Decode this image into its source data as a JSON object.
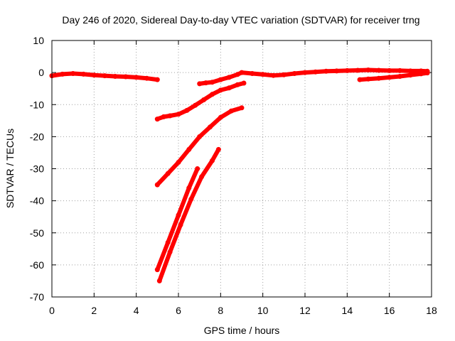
{
  "chart_data": {
    "type": "scatter",
    "title": "Day 246 of 2020, Sidereal Day-to-day VTEC variation (SDTVAR) for receiver trng",
    "xlabel": "GPS time / hours",
    "ylabel": "SDTVAR / TECUs",
    "xlim": [
      0,
      18
    ],
    "ylim": [
      -70,
      10
    ],
    "xticks": [
      0,
      2,
      4,
      6,
      8,
      10,
      12,
      14,
      16,
      18
    ],
    "yticks": [
      -70,
      -60,
      -50,
      -40,
      -30,
      -20,
      -10,
      0,
      10
    ],
    "grid": true,
    "legend": "none",
    "color": "#ff0000",
    "series": [
      {
        "x": [
          0,
          0.5,
          1.0,
          1.5,
          2.0,
          2.5,
          3.0,
          3.5,
          4.0,
          4.5,
          5.0
        ],
        "y": [
          -1.0,
          -0.5,
          -0.3,
          -0.5,
          -0.8,
          -1.0,
          -1.2,
          -1.3,
          -1.5,
          -1.8,
          -2.2
        ]
      },
      {
        "x": [
          7.0,
          7.3,
          7.6,
          8.0,
          8.4,
          8.8,
          9.0,
          9.5,
          10.0,
          10.5,
          11.0,
          11.5,
          12.0,
          12.5,
          13.0,
          13.5,
          14.0,
          14.5,
          15.0,
          15.5,
          16.0,
          16.5,
          17.0,
          17.5,
          17.8
        ],
        "y": [
          -3.5,
          -3.2,
          -3.0,
          -2.2,
          -1.5,
          -0.6,
          0.0,
          -0.3,
          -0.6,
          -0.9,
          -0.7,
          -0.3,
          0.0,
          0.2,
          0.4,
          0.5,
          0.6,
          0.7,
          0.8,
          0.7,
          0.6,
          0.6,
          0.5,
          0.5,
          0.4
        ]
      },
      {
        "x": [
          14.6,
          15.0,
          15.5,
          16.0,
          16.5,
          17.0,
          17.5,
          17.8
        ],
        "y": [
          -2.2,
          -2.0,
          -1.8,
          -1.5,
          -1.2,
          -0.8,
          -0.4,
          -0.1
        ]
      },
      {
        "x": [
          5.0,
          5.3,
          5.6,
          6.0,
          6.4,
          6.8,
          7.2,
          7.6,
          8.0,
          8.4,
          8.8,
          9.1
        ],
        "y": [
          -14.5,
          -13.8,
          -13.5,
          -13.0,
          -11.8,
          -10.2,
          -8.5,
          -6.8,
          -5.5,
          -4.8,
          -3.8,
          -3.3
        ]
      },
      {
        "x": [
          5.0,
          5.5,
          6.0,
          6.5,
          7.0,
          7.5,
          8.0,
          8.5,
          9.0
        ],
        "y": [
          -35,
          -31.5,
          -28,
          -24,
          -20,
          -17,
          -14,
          -12,
          -11
        ]
      },
      {
        "x": [
          5.0,
          5.5,
          6.0,
          6.5,
          6.9
        ],
        "y": [
          -61.5,
          -53,
          -44.5,
          -36,
          -30
        ]
      },
      {
        "x": [
          5.1,
          5.6,
          6.1,
          6.6,
          7.1,
          7.6,
          7.9
        ],
        "y": [
          -65,
          -56,
          -47.5,
          -39.5,
          -32.5,
          -27.5,
          -24
        ]
      }
    ]
  }
}
